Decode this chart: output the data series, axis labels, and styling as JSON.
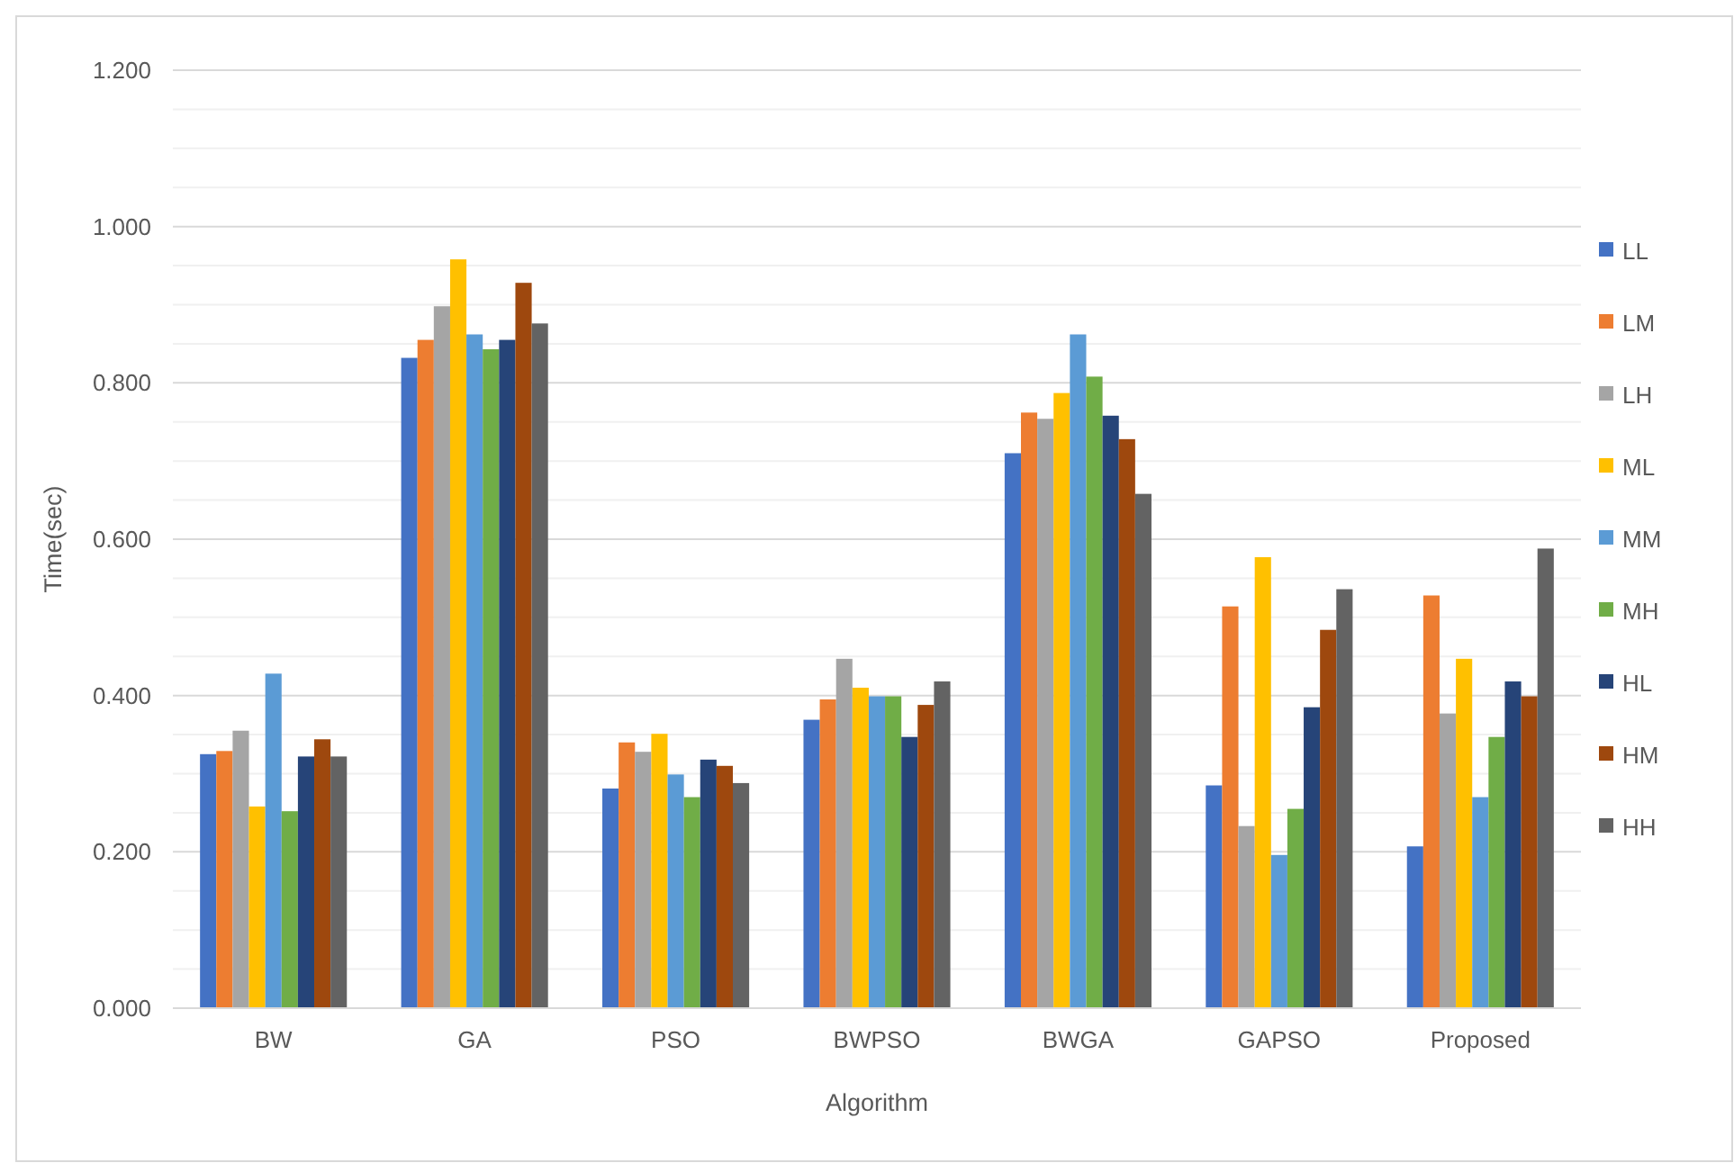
{
  "chart_data": {
    "type": "bar",
    "xlabel": "Algorithm",
    "ylabel": "Time(sec)",
    "categories": [
      "BW",
      "GA",
      "PSO",
      "BWPSO",
      "BWGA",
      "GAPSO",
      "Proposed"
    ],
    "series": [
      {
        "name": "LL",
        "color": "#4472c4",
        "values": [
          0.325,
          0.832,
          0.281,
          0.369,
          0.71,
          0.285,
          0.207
        ]
      },
      {
        "name": "LM",
        "color": "#ed7d31",
        "values": [
          0.329,
          0.855,
          0.34,
          0.395,
          0.762,
          0.514,
          0.528
        ]
      },
      {
        "name": "LH",
        "color": "#a5a5a5",
        "values": [
          0.355,
          0.898,
          0.328,
          0.447,
          0.754,
          0.233,
          0.377
        ]
      },
      {
        "name": "ML",
        "color": "#ffc000",
        "values": [
          0.258,
          0.958,
          0.351,
          0.41,
          0.787,
          0.577,
          0.447
        ]
      },
      {
        "name": "MM",
        "color": "#5b9bd5",
        "values": [
          0.428,
          0.862,
          0.299,
          0.399,
          0.862,
          0.196,
          0.27
        ]
      },
      {
        "name": "MH",
        "color": "#70ad47",
        "values": [
          0.252,
          0.843,
          0.27,
          0.399,
          0.808,
          0.255,
          0.347
        ]
      },
      {
        "name": "HL",
        "color": "#264478",
        "values": [
          0.322,
          0.855,
          0.318,
          0.347,
          0.758,
          0.385,
          0.418
        ]
      },
      {
        "name": "HM",
        "color": "#9e480e",
        "values": [
          0.344,
          0.928,
          0.31,
          0.388,
          0.728,
          0.484,
          0.399
        ]
      },
      {
        "name": "HH",
        "color": "#636363",
        "values": [
          0.322,
          0.876,
          0.288,
          0.418,
          0.658,
          0.536,
          0.588
        ]
      }
    ],
    "ylim": [
      0,
      1.2
    ],
    "yticks": [
      {
        "value": 0,
        "label": "0.000"
      },
      {
        "value": 0.05,
        "label": null
      },
      {
        "value": 0.1,
        "label": null
      },
      {
        "value": 0.15,
        "label": null
      },
      {
        "value": 0.2,
        "label": "0.200"
      },
      {
        "value": 0.25,
        "label": null
      },
      {
        "value": 0.3,
        "label": null
      },
      {
        "value": 0.35,
        "label": null
      },
      {
        "value": 0.4,
        "label": "0.400"
      },
      {
        "value": 0.45,
        "label": null
      },
      {
        "value": 0.5,
        "label": null
      },
      {
        "value": 0.55,
        "label": null
      },
      {
        "value": 0.6,
        "label": "0.600"
      },
      {
        "value": 0.65,
        "label": null
      },
      {
        "value": 0.7,
        "label": null
      },
      {
        "value": 0.75,
        "label": null
      },
      {
        "value": 0.8,
        "label": "0.800"
      },
      {
        "value": 0.85,
        "label": null
      },
      {
        "value": 0.9,
        "label": null
      },
      {
        "value": 0.95,
        "label": null
      },
      {
        "value": 1.0,
        "label": "1.000"
      },
      {
        "value": 1.05,
        "label": null
      },
      {
        "value": 1.1,
        "label": null
      },
      {
        "value": 1.15,
        "label": null
      },
      {
        "value": 1.2,
        "label": "1.200"
      }
    ],
    "grid": "y",
    "legend": "right"
  }
}
